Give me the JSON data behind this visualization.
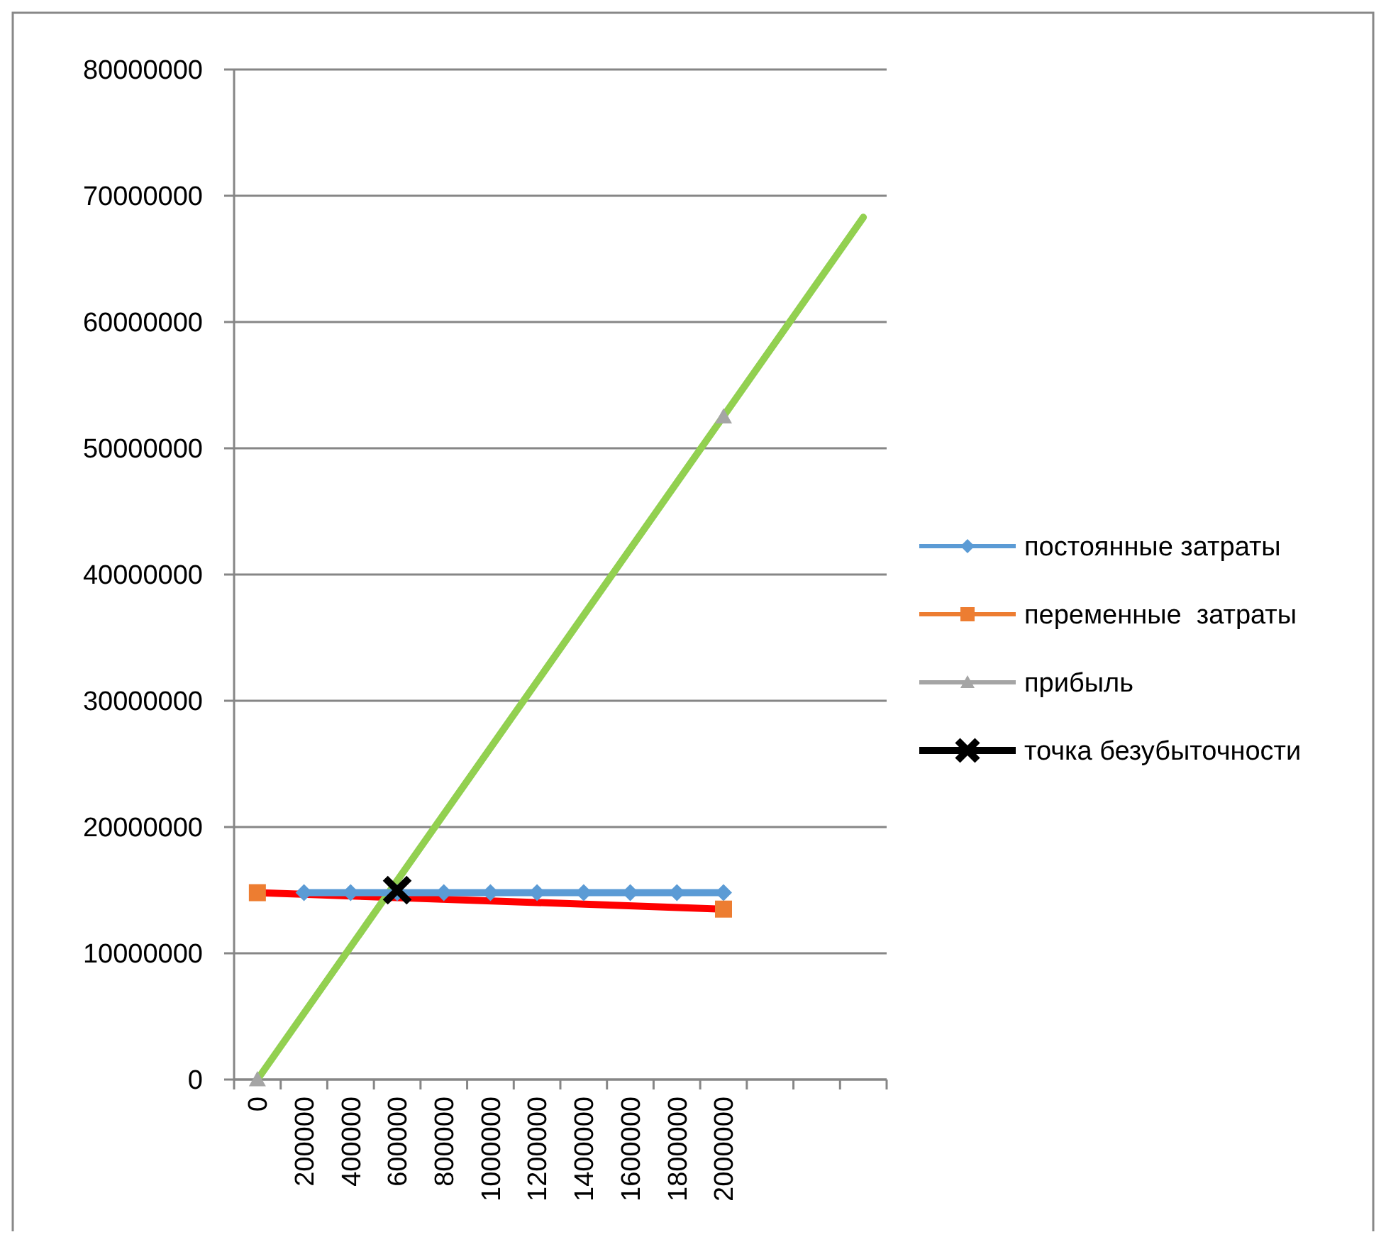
{
  "chart_data": {
    "type": "line",
    "categories": [
      "0",
      "200000",
      "400000",
      "600000",
      "800000",
      "1000000",
      "1200000",
      "1400000",
      "1600000",
      "1800000",
      "2000000",
      null,
      null,
      null
    ],
    "ylim": [
      0,
      80000000
    ],
    "yticks": [
      0,
      10000000,
      20000000,
      30000000,
      40000000,
      50000000,
      60000000,
      70000000,
      80000000
    ],
    "grid": "y",
    "legend": "right",
    "series": [
      {
        "name": "постоянные затраты",
        "color": "#5b9bd5",
        "marker": "diamond",
        "values": [
          null,
          14800000,
          14800000,
          14800000,
          14800000,
          14800000,
          14800000,
          14800000,
          14800000,
          14800000,
          14800000,
          null,
          null,
          null
        ]
      },
      {
        "name": "переменные  затраты",
        "color": "#ed7d31",
        "type": "scatter",
        "marker": "square",
        "values": [
          14800000,
          null,
          null,
          null,
          null,
          null,
          null,
          null,
          null,
          null,
          13500000,
          null,
          null,
          null
        ]
      },
      {
        "name": "прибыль",
        "color": "#a5a5a5",
        "type": "scatter",
        "marker": "triangle",
        "values": [
          0,
          null,
          null,
          null,
          null,
          null,
          null,
          null,
          null,
          null,
          52500000,
          null,
          null,
          null
        ]
      },
      {
        "name": "точка безубыточности",
        "color": "#000000",
        "type": "scatter",
        "marker": "cross",
        "values": [
          null,
          null,
          null,
          15000000,
          null,
          null,
          null,
          null,
          null,
          null,
          null,
          null,
          null,
          null
        ]
      },
      {
        "color": "#ff0000",
        "marker": "none",
        "values": [
          14800000,
          null,
          null,
          null,
          null,
          null,
          null,
          null,
          null,
          null,
          13500000,
          null,
          null,
          null
        ]
      },
      {
        "color": "#92d050",
        "marker": "none",
        "values": [
          0,
          null,
          null,
          null,
          null,
          null,
          null,
          null,
          null,
          null,
          null,
          null,
          null,
          68300000
        ]
      }
    ]
  }
}
